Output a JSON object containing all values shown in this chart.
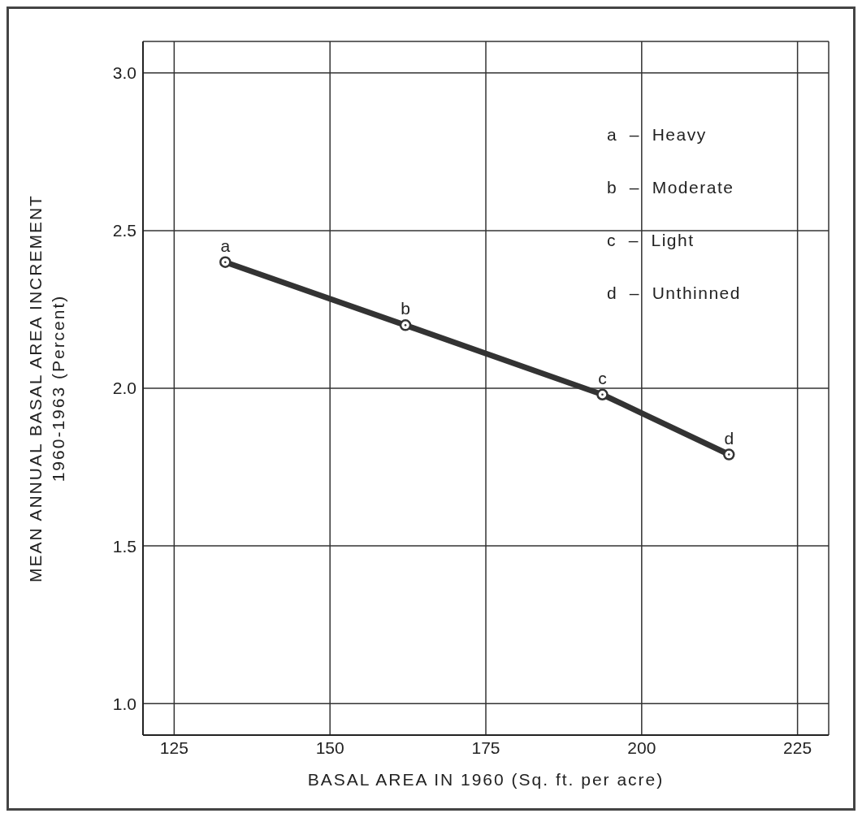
{
  "chart_data": {
    "type": "line",
    "xlabel": "BASAL AREA IN 1960 (Sq. ft. per acre)",
    "ylabel": "MEAN ANNUAL BASAL AREA INCREMENT\n1960-1963 (Percent)",
    "x": [
      133.2,
      162.1,
      193.7,
      214
    ],
    "series": [
      {
        "color": "#333333",
        "values": [
          2.4,
          2.2,
          1.98,
          1.79
        ]
      }
    ],
    "xlim": [
      120,
      230
    ],
    "xticks": [
      125,
      150,
      175,
      200,
      225
    ],
    "ylim": [
      0.9,
      3.1
    ],
    "yticks": [
      {
        "value": 1,
        "label": "1.0"
      },
      1.5,
      {
        "value": 2,
        "label": "2.0"
      },
      2.5,
      {
        "value": 3,
        "label": "3.0"
      }
    ],
    "grid": true,
    "marker": "circle",
    "line_style": "solid",
    "legend": false,
    "annotations": [
      {
        "text": "a",
        "x": 133.2,
        "y": 2.4
      },
      {
        "text": "b",
        "x": 162.1,
        "y": 2.2
      },
      {
        "text": "c",
        "x": 193.7,
        "y": 1.98
      },
      {
        "text": "d",
        "x": 214,
        "y": 1.79
      },
      "a  –  Heavy",
      "b  –  Moderate",
      "c  –  Light",
      "d  –  Unthinned"
    ]
  }
}
